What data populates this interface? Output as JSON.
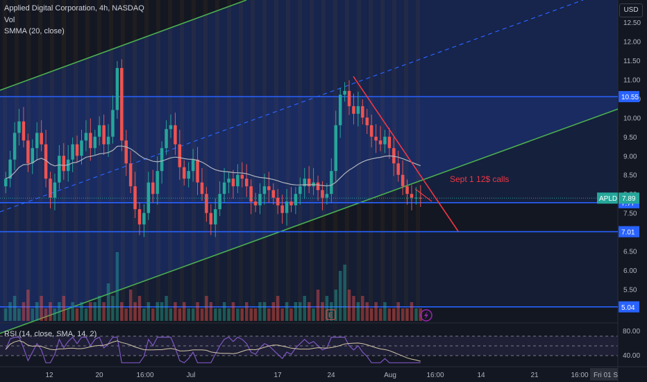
{
  "header": {
    "title": "Applied Digital Corporation, 4h, NASDAQ",
    "vol": "Vol",
    "smma": "SMMA (20, close)",
    "currency": "USD"
  },
  "annotation": {
    "text": "Sept 1 12$ calls",
    "color": "#f23645"
  },
  "ticker": {
    "symbol": "APLD",
    "last_price": "7.89",
    "color": "#26a69a"
  },
  "rsi": {
    "label": "RSI (14, close, SMA, 14, 2)",
    "ticks": [
      "80.00",
      "40.00"
    ]
  },
  "chart_data": {
    "type": "candlestick",
    "title": "Applied Digital Corporation, 4h, NASDAQ",
    "ylim": [
      4.9,
      12.8
    ],
    "y_ticks": [
      "12.50",
      "12.00",
      "11.50",
      "11.00",
      "10.50",
      "10.00",
      "9.50",
      "9.00",
      "8.50",
      "8.00",
      "7.50",
      "7.00",
      "6.50",
      "6.00",
      "5.50",
      "5.00"
    ],
    "x_ticks": [
      "12",
      "20",
      "16:00",
      "Jul",
      "17",
      "24",
      "Aug",
      "16:00",
      "14",
      "21",
      "16:00",
      "Fri 01 S"
    ],
    "horizontal_levels": [
      {
        "label": "10.55",
        "value": 10.55
      },
      {
        "label": "7.77",
        "value": 7.77
      },
      {
        "label": "7.01",
        "value": 7.01
      },
      {
        "label": "5.04",
        "value": 5.04
      }
    ],
    "close_series_approx": [
      8.4,
      8.9,
      9.6,
      9.9,
      9.4,
      8.8,
      9.2,
      9.6,
      9.3,
      8.4,
      7.9,
      8.3,
      9.0,
      8.6,
      8.9,
      9.3,
      9.0,
      9.4,
      9.6,
      9.2,
      9.5,
      9.8,
      9.3,
      9.5,
      10.2,
      11.3,
      9.4,
      8.8,
      8.2,
      7.6,
      7.2,
      7.5,
      8.3,
      8.0,
      8.6,
      9.2,
      9.7,
      9.8,
      9.3,
      8.7,
      8.4,
      8.6,
      8.9,
      8.3,
      8.0,
      7.5,
      7.2,
      7.6,
      8.0,
      8.3,
      8.4,
      8.2,
      8.5,
      8.4,
      8.2,
      7.8,
      7.7,
      8.0,
      8.2,
      8.1,
      7.9,
      7.7,
      7.5,
      7.8,
      7.7,
      8.0,
      8.2,
      8.4,
      8.2,
      8.3,
      8.1,
      7.9,
      8.0,
      8.6,
      9.8,
      10.6,
      10.7,
      10.3,
      10.1,
      10.3,
      10.0,
      9.8,
      9.5,
      9.4,
      9.3,
      9.5,
      9.2,
      8.8,
      8.5,
      8.2,
      8.0,
      7.9,
      7.9,
      7.89
    ],
    "volume_approx": [
      2,
      3,
      4,
      2,
      3,
      5,
      2,
      3,
      4,
      2,
      3,
      2,
      3,
      4,
      2,
      3,
      2,
      3,
      2,
      3,
      3,
      4,
      3,
      6,
      4,
      11,
      3,
      2,
      5,
      3,
      4,
      2,
      3,
      2,
      3,
      3,
      4,
      2,
      3,
      2,
      3,
      2,
      2,
      3,
      2,
      4,
      3,
      2,
      2,
      3,
      2,
      3,
      2,
      2,
      3,
      2,
      2,
      3,
      3,
      2,
      3,
      4,
      2,
      3,
      2,
      3,
      3,
      4,
      3,
      2,
      5,
      3,
      4,
      3,
      5,
      8,
      9,
      5,
      4,
      3,
      4,
      3,
      2,
      3,
      2,
      3,
      2,
      2,
      3,
      2,
      2,
      3,
      2,
      2
    ],
    "rsi_levels": {
      "upper": 80,
      "lower": 40
    }
  }
}
